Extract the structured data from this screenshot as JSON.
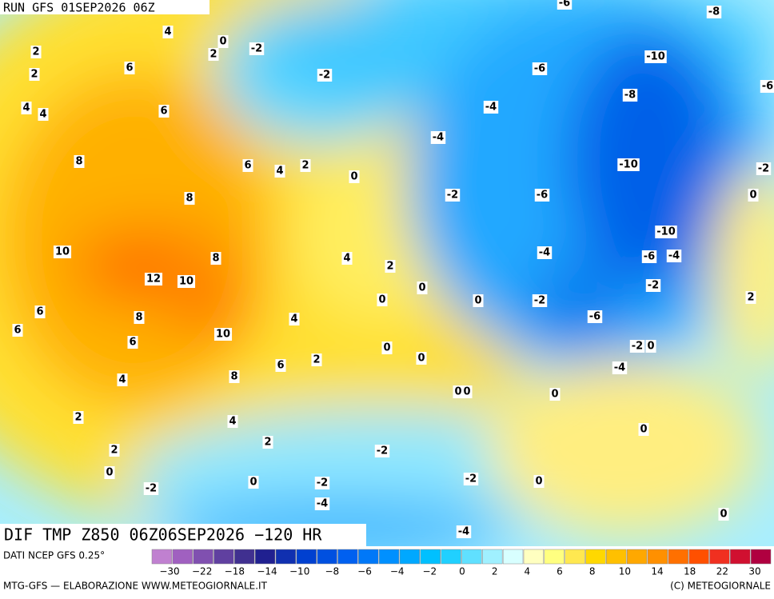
{
  "header": {
    "run": "RUN GFS 01SEP2026 06Z"
  },
  "contour_labels": [
    4,
    2,
    2,
    6,
    4,
    4,
    6,
    2,
    0,
    -2,
    -2,
    8,
    6,
    4,
    2,
    0,
    8,
    10,
    12,
    10,
    8,
    4,
    2,
    0,
    0,
    6,
    6,
    8,
    10,
    6,
    4,
    6,
    2,
    0,
    0,
    4,
    8,
    0,
    0,
    0,
    2,
    4,
    2,
    2,
    0,
    -2,
    0,
    -2,
    -2,
    -2,
    0,
    -4,
    0,
    -4,
    0,
    2,
    -4,
    -2,
    0,
    -6,
    -2,
    0,
    -2,
    -4,
    -6,
    -4,
    -10,
    -6,
    -2,
    0,
    -10,
    -2,
    -4,
    -4,
    -8,
    -6,
    -10,
    -6,
    -8,
    -6
  ],
  "footer": {
    "title": "DIF TMP Z850 06Z06SEP2026 −120 HR",
    "source": "DATI NCEP GFS 0.25°",
    "credit": "MTG-GFS — ELABORAZIONE WWW.METEOGIORNALE.IT",
    "copyright": "(C) METEOGIORNALE"
  },
  "legend": {
    "colors": [
      "#c080d0",
      "#a060c0",
      "#8050b0",
      "#6040a0",
      "#403090",
      "#202090",
      "#1030b0",
      "#0040d0",
      "#0050e0",
      "#0060f0",
      "#0078f8",
      "#0090ff",
      "#00a8ff",
      "#00c0ff",
      "#20d0ff",
      "#60e0ff",
      "#a0f0ff",
      "#d8ffff",
      "#ffffc0",
      "#ffff80",
      "#ffe850",
      "#ffd800",
      "#ffc000",
      "#ffa800",
      "#ff9000",
      "#ff7000",
      "#ff5000",
      "#f03020",
      "#d01030",
      "#b00040"
    ],
    "labels": [
      "−30",
      "−22",
      "−18",
      "−14",
      "−10",
      "−8",
      "−6",
      "−4",
      "−2",
      "0",
      "2",
      "4",
      "6",
      "8",
      "10",
      "14",
      "18",
      "22",
      "30"
    ]
  }
}
